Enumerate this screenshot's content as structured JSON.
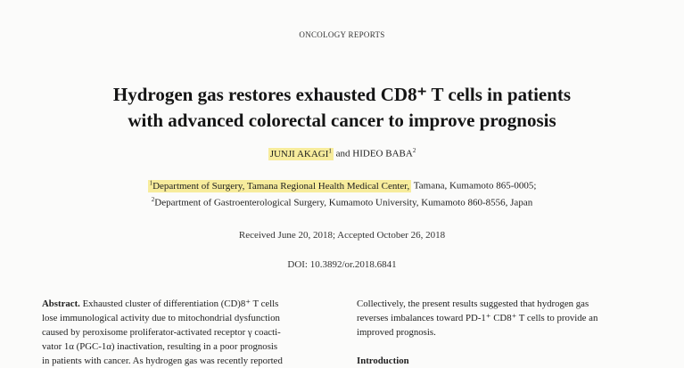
{
  "journal": "ONCOLOGY REPORTS",
  "title_lines": [
    "Hydrogen gas restores exhausted CD8⁺ T cells in patients",
    "with advanced colorectal cancer to improve prognosis"
  ],
  "authors": {
    "a1": "JUNJI AKAGI",
    "a1_sup": "1",
    "and": "and",
    "a2": "HIDEO BABA",
    "a2_sup": "2"
  },
  "affiliations": {
    "aff1_sup": "1",
    "aff1_highlight": "Department of Surgery, Tamana Regional Health Medical Center,",
    "aff1_rest": " Tamana, Kumamoto 865-0005;",
    "aff2_sup": "2",
    "aff2": "Department of Gastroenterological Surgery, Kumamoto University, Kumamoto 860-8556, Japan"
  },
  "received": "Received June 20, 2018;  Accepted October 26, 2018",
  "doi": "DOI: 10.3892/or.2018.6841",
  "abstract": {
    "heading": "Abstract.",
    "lines": [
      " Exhausted cluster of differentiation (CD)8⁺ T cells",
      "lose immunological activity due to mitochondrial dysfunction",
      "caused by peroxisome proliferator-activated receptor γ coacti-",
      "vator 1α (PGC-1α) inactivation, resulting in a poor prognosis",
      "in patients with cancer. As hydrogen gas was recently reported"
    ]
  },
  "right_column": {
    "lines": [
      "Collectively, the present results suggested that hydrogen gas",
      "reverses imbalances toward PD-1⁺ CD8⁺ T cells to provide an",
      "improved prognosis."
    ],
    "section_heading": "Introduction"
  },
  "highlight_color": "#f7ec9c"
}
